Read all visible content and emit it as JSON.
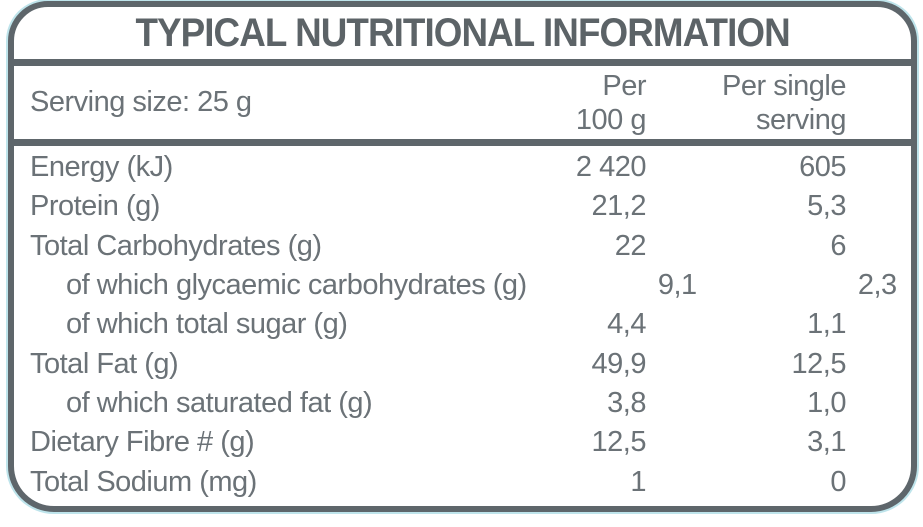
{
  "title": "TYPICAL NUTRITIONAL INFORMATION",
  "serving_size_label": "Serving size: 25 g",
  "columns": {
    "per_100g": {
      "line1": "Per",
      "line2": "100 g"
    },
    "per_serving": {
      "line1": "Per single",
      "line2": "serving"
    }
  },
  "rows": [
    {
      "label": "Energy (kJ)",
      "per_100g": "2 420",
      "per_serving": "605",
      "indent": false
    },
    {
      "label": "Protein (g)",
      "per_100g": "21,2",
      "per_serving": "5,3",
      "indent": false
    },
    {
      "label": "Total Carbohydrates (g)",
      "per_100g": "22",
      "per_serving": "6",
      "indent": false
    },
    {
      "label": "of which glycaemic carbohydrates (g)",
      "per_100g": "9,1",
      "per_serving": "2,3",
      "indent": true
    },
    {
      "label": "of which total sugar (g)",
      "per_100g": "4,4",
      "per_serving": "1,1",
      "indent": true
    },
    {
      "label": "Total Fat (g)",
      "per_100g": "49,9",
      "per_serving": "12,5",
      "indent": false
    },
    {
      "label": "of which saturated fat (g)",
      "per_100g": "3,8",
      "per_serving": "1,0",
      "indent": true
    },
    {
      "label": "Dietary Fibre # (g)",
      "per_100g": "12,5",
      "per_serving": "3,1",
      "indent": false
    },
    {
      "label": "Total Sodium (mg)",
      "per_100g": "1",
      "per_serving": "0",
      "indent": false
    }
  ],
  "colors": {
    "text": "#6b7277",
    "title_text": "#5c6367",
    "border": "#5e666b",
    "accent_teal": "#a8dbe4",
    "background": "#ffffff"
  }
}
